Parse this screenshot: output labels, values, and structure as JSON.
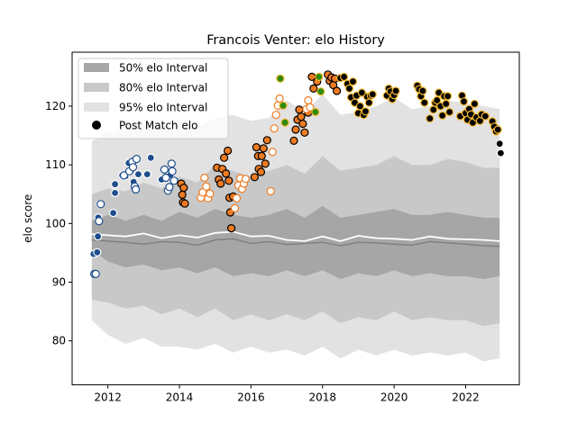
{
  "chart_data": {
    "type": "scatter",
    "title": "Francois Venter: elo History",
    "xlabel": "",
    "ylabel": "elo score",
    "xlim": [
      2011.0,
      2023.5
    ],
    "ylim": [
      72.5,
      129.2
    ],
    "xticks": [
      2012,
      2014,
      2016,
      2018,
      2020,
      2022
    ],
    "yticks": [
      80,
      90,
      100,
      110,
      120
    ],
    "grid": false,
    "legend": {
      "placement": "top-left",
      "entries": [
        "50% elo Interval",
        "80% elo Interval",
        "95% elo Interval",
        "Post Match elo"
      ]
    },
    "colors": {
      "band50": "#a6a6a6",
      "band80": "#c8c8c8",
      "band95": "#e2e2e2",
      "median_line": "#808080",
      "mean_line": "#ffffff",
      "blue": "#1f4e8c",
      "orange": "#ee7b22",
      "green": "#2e8b0e",
      "gold": "#f5b82e",
      "black": "#000000"
    },
    "intervals": {
      "x": [
        2011.55,
        2012.0,
        2012.5,
        2013.0,
        2013.5,
        2014.0,
        2014.5,
        2015.0,
        2015.5,
        2016.0,
        2016.5,
        2017.0,
        2017.5,
        2018.0,
        2018.5,
        2019.0,
        2019.5,
        2020.0,
        2020.5,
        2021.0,
        2021.5,
        2022.0,
        2022.5,
        2022.95
      ],
      "p95_upper": [
        114.0,
        115.5,
        116.0,
        117.0,
        116.5,
        117.5,
        116.5,
        118.0,
        118.5,
        117.5,
        118.0,
        121.0,
        119.0,
        122.0,
        118.5,
        119.0,
        120.0,
        121.5,
        119.5,
        120.0,
        121.0,
        120.5,
        120.0,
        119.5
      ],
      "p80_upper": [
        105.0,
        106.0,
        105.5,
        107.0,
        106.0,
        108.0,
        107.0,
        110.0,
        109.0,
        108.0,
        109.0,
        110.0,
        108.5,
        111.5,
        109.0,
        109.5,
        110.0,
        111.5,
        110.0,
        110.0,
        111.0,
        110.5,
        109.5,
        109.5
      ],
      "p50_upper": [
        100.5,
        101.5,
        100.5,
        101.5,
        100.5,
        102.0,
        101.0,
        102.5,
        101.5,
        101.0,
        101.5,
        102.5,
        101.0,
        103.0,
        101.0,
        101.5,
        102.0,
        102.5,
        101.5,
        101.5,
        102.0,
        101.5,
        101.0,
        101.0
      ],
      "p50_lower": [
        95.5,
        93.5,
        92.5,
        93.0,
        92.0,
        92.5,
        91.5,
        92.5,
        91.0,
        91.5,
        91.0,
        92.0,
        91.0,
        92.0,
        90.5,
        91.5,
        91.0,
        92.0,
        91.0,
        91.5,
        91.0,
        91.0,
        90.5,
        91.0
      ],
      "p80_lower": [
        87.0,
        86.5,
        85.5,
        86.0,
        84.5,
        85.5,
        84.0,
        85.5,
        83.5,
        84.5,
        83.5,
        84.5,
        83.5,
        85.0,
        83.0,
        84.0,
        83.5,
        85.0,
        83.5,
        84.0,
        83.5,
        83.5,
        82.5,
        83.0
      ],
      "p95_lower": [
        83.5,
        81.0,
        79.5,
        80.5,
        79.0,
        79.0,
        78.5,
        79.5,
        78.0,
        79.0,
        78.0,
        78.5,
        77.5,
        79.0,
        77.0,
        78.5,
        77.5,
        78.5,
        77.5,
        78.0,
        77.5,
        78.0,
        76.5,
        77.0
      ],
      "median": [
        97.2,
        97.0,
        96.8,
        96.5,
        96.9,
        96.8,
        96.3,
        97.2,
        97.4,
        96.6,
        96.9,
        96.4,
        96.6,
        96.8,
        96.2,
        96.8,
        96.7,
        96.5,
        96.3,
        96.9,
        96.7,
        96.5,
        96.2,
        96.1
      ],
      "mean": [
        98.2,
        98.0,
        97.8,
        98.3,
        97.5,
        98.0,
        97.6,
        98.4,
        98.6,
        97.8,
        97.9,
        97.2,
        97.0,
        97.8,
        97.0,
        97.9,
        97.5,
        97.4,
        97.2,
        97.8,
        97.4,
        97.3,
        97.2,
        97.0
      ]
    },
    "series": [
      {
        "style": "blue-filled",
        "points": [
          [
            2011.6,
            94.8
          ],
          [
            2011.7,
            95.1
          ],
          [
            2011.72,
            97.8
          ],
          [
            2011.73,
            101.0
          ],
          [
            2011.78,
            103.3
          ],
          [
            2012.15,
            101.8
          ],
          [
            2012.2,
            105.2
          ],
          [
            2012.2,
            106.7
          ],
          [
            2012.4,
            108.2
          ],
          [
            2012.5,
            108.1
          ],
          [
            2012.55,
            108.7
          ],
          [
            2012.58,
            110.3
          ],
          [
            2012.65,
            109.0
          ],
          [
            2012.72,
            107.1
          ],
          [
            2012.85,
            108.4
          ],
          [
            2013.1,
            108.4
          ],
          [
            2013.2,
            111.2
          ],
          [
            2013.5,
            107.5
          ],
          [
            2013.75,
            108.3
          ]
        ]
      },
      {
        "style": "blue-hollow",
        "points": [
          [
            2011.62,
            91.4
          ],
          [
            2011.66,
            91.4
          ],
          [
            2011.75,
            100.4
          ],
          [
            2011.8,
            103.3
          ],
          [
            2012.45,
            108.2
          ],
          [
            2012.6,
            108.9
          ],
          [
            2012.68,
            110.5
          ],
          [
            2012.7,
            109.6
          ],
          [
            2012.75,
            106.3
          ],
          [
            2012.78,
            105.8
          ],
          [
            2012.8,
            111.0
          ],
          [
            2013.58,
            109.2
          ],
          [
            2013.62,
            107.8
          ],
          [
            2013.68,
            105.6
          ],
          [
            2013.72,
            106.2
          ],
          [
            2013.78,
            110.2
          ],
          [
            2013.8,
            108.9
          ],
          [
            2013.85,
            107.3
          ]
        ]
      },
      {
        "style": "orange-filled",
        "points": [
          [
            2014.05,
            106.8
          ],
          [
            2014.08,
            104.9
          ],
          [
            2014.1,
            103.6
          ],
          [
            2014.12,
            106.1
          ],
          [
            2014.15,
            103.4
          ],
          [
            2015.05,
            109.5
          ],
          [
            2015.1,
            107.5
          ],
          [
            2015.15,
            106.8
          ],
          [
            2015.2,
            109.3
          ],
          [
            2015.25,
            111.2
          ],
          [
            2015.3,
            108.5
          ],
          [
            2015.35,
            112.4
          ],
          [
            2015.38,
            107.3
          ],
          [
            2015.4,
            104.4
          ],
          [
            2015.42,
            101.9
          ],
          [
            2015.45,
            99.2
          ],
          [
            2015.5,
            104.6
          ],
          [
            2016.1,
            107.9
          ],
          [
            2016.15,
            113.0
          ],
          [
            2016.2,
            111.5
          ],
          [
            2016.22,
            109.3
          ],
          [
            2016.28,
            108.8
          ],
          [
            2016.3,
            111.5
          ],
          [
            2016.35,
            112.8
          ],
          [
            2016.4,
            110.2
          ],
          [
            2016.45,
            114.2
          ],
          [
            2017.2,
            114.1
          ],
          [
            2017.25,
            116.0
          ],
          [
            2017.3,
            117.7
          ],
          [
            2017.35,
            119.4
          ],
          [
            2017.4,
            118.2
          ],
          [
            2017.45,
            117.0
          ],
          [
            2017.5,
            115.5
          ],
          [
            2017.6,
            118.9
          ],
          [
            2017.7,
            125.0
          ],
          [
            2017.75,
            123.0
          ],
          [
            2017.85,
            124.2
          ],
          [
            2018.15,
            125.4
          ],
          [
            2018.2,
            124.3
          ],
          [
            2018.25,
            124.9
          ],
          [
            2018.3,
            123.6
          ],
          [
            2018.35,
            124.7
          ],
          [
            2018.4,
            122.6
          ]
        ]
      },
      {
        "style": "orange-hollow",
        "points": [
          [
            2014.6,
            104.4
          ],
          [
            2014.65,
            105.3
          ],
          [
            2014.7,
            107.8
          ],
          [
            2014.75,
            106.3
          ],
          [
            2014.8,
            104.3
          ],
          [
            2014.85,
            105.1
          ],
          [
            2015.55,
            102.6
          ],
          [
            2015.6,
            104.3
          ],
          [
            2015.65,
            106.5
          ],
          [
            2015.7,
            107.7
          ],
          [
            2015.75,
            105.9
          ],
          [
            2015.8,
            106.8
          ],
          [
            2015.85,
            107.6
          ],
          [
            2016.55,
            105.5
          ],
          [
            2016.6,
            112.2
          ],
          [
            2016.65,
            116.2
          ],
          [
            2016.7,
            118.5
          ],
          [
            2016.75,
            120.1
          ],
          [
            2016.8,
            121.3
          ],
          [
            2017.55,
            119.5
          ],
          [
            2017.6,
            121.0
          ],
          [
            2017.65,
            119.8
          ]
        ]
      },
      {
        "style": "green-gold",
        "points": [
          [
            2016.82,
            124.7
          ],
          [
            2016.9,
            120.1
          ],
          [
            2016.95,
            117.2
          ],
          [
            2017.8,
            119.0
          ],
          [
            2017.9,
            125.0
          ],
          [
            2017.95,
            122.5
          ]
        ]
      },
      {
        "style": "black-gold",
        "points": [
          [
            2018.5,
            124.8
          ],
          [
            2018.6,
            125.0
          ],
          [
            2018.7,
            123.8
          ],
          [
            2018.75,
            123.0
          ],
          [
            2018.8,
            121.5
          ],
          [
            2018.85,
            124.2
          ],
          [
            2018.9,
            120.6
          ],
          [
            2018.95,
            121.8
          ],
          [
            2019.0,
            118.8
          ],
          [
            2019.05,
            120.0
          ],
          [
            2019.1,
            122.3
          ],
          [
            2019.15,
            118.5
          ],
          [
            2019.2,
            119.1
          ],
          [
            2019.25,
            121.6
          ],
          [
            2019.3,
            120.6
          ],
          [
            2019.35,
            121.8
          ],
          [
            2019.4,
            122.0
          ],
          [
            2019.8,
            121.8
          ],
          [
            2019.85,
            123.0
          ],
          [
            2019.9,
            122.5
          ],
          [
            2019.95,
            121.2
          ],
          [
            2020.0,
            121.9
          ],
          [
            2020.05,
            122.6
          ],
          [
            2020.65,
            123.5
          ],
          [
            2020.7,
            122.9
          ],
          [
            2020.75,
            121.7
          ],
          [
            2020.8,
            122.6
          ],
          [
            2020.85,
            120.6
          ],
          [
            2021.0,
            117.9
          ],
          [
            2021.1,
            119.4
          ],
          [
            2021.15,
            120.6
          ],
          [
            2021.2,
            121.0
          ],
          [
            2021.25,
            122.3
          ],
          [
            2021.3,
            120.0
          ],
          [
            2021.35,
            118.4
          ],
          [
            2021.4,
            121.7
          ],
          [
            2021.45,
            120.4
          ],
          [
            2021.5,
            121.7
          ],
          [
            2021.55,
            119.0
          ],
          [
            2021.85,
            118.3
          ],
          [
            2021.9,
            121.8
          ],
          [
            2021.95,
            120.8
          ],
          [
            2022.0,
            118.8
          ],
          [
            2022.05,
            117.7
          ],
          [
            2022.1,
            119.5
          ],
          [
            2022.15,
            118.6
          ],
          [
            2022.2,
            117.2
          ],
          [
            2022.25,
            120.4
          ],
          [
            2022.3,
            118.1
          ],
          [
            2022.4,
            117.5
          ],
          [
            2022.45,
            118.6
          ],
          [
            2022.55,
            118.3
          ],
          [
            2022.75,
            117.4
          ],
          [
            2022.8,
            116.5
          ],
          [
            2022.85,
            115.7
          ],
          [
            2022.9,
            116.0
          ]
        ]
      },
      {
        "style": "black-white",
        "points": [
          [
            2022.95,
            113.6
          ],
          [
            2022.98,
            112.0
          ]
        ]
      }
    ]
  }
}
